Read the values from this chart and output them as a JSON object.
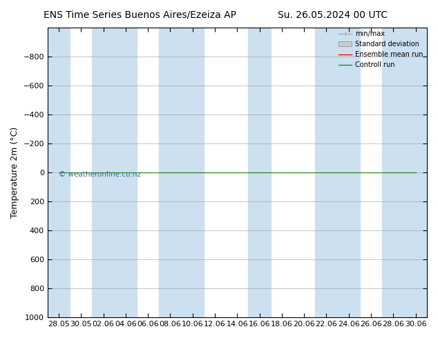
{
  "title_left": "ENS Time Series Buenos Aires/Ezeiza AP",
  "title_right": "Su. 26.05.2024 00 UTC",
  "ylabel": "Temperature 2m (°C)",
  "ylim_min": -1000,
  "ylim_max": 1000,
  "yticks": [
    -800,
    -600,
    -400,
    -200,
    0,
    200,
    400,
    600,
    800,
    1000
  ],
  "xtick_labels": [
    "28.05",
    "30.05",
    "02.06",
    "04.06",
    "06.06",
    "08.06",
    "10.06",
    "12.06",
    "14.06",
    "16.06",
    "18.06",
    "20.06",
    "22.06",
    "24.06",
    "26.06",
    "28.06",
    "30.06"
  ],
  "bg_color": "#ffffff",
  "plot_bg_color": "#ffffff",
  "band_color": "#cce0f0",
  "grid_color": "#999999",
  "ensemble_mean_color": "#ff0000",
  "control_run_color": "#228B22",
  "watermark": "© weatheronline.co.nz",
  "watermark_color": "#3366aa",
  "legend_items": [
    "min/max",
    "Standard deviation",
    "Ensemble mean run",
    "Controll run"
  ],
  "title_fontsize": 10,
  "axis_fontsize": 9,
  "tick_fontsize": 8,
  "band_indices": [
    0,
    2,
    4,
    6,
    8,
    10,
    12,
    14,
    16
  ]
}
